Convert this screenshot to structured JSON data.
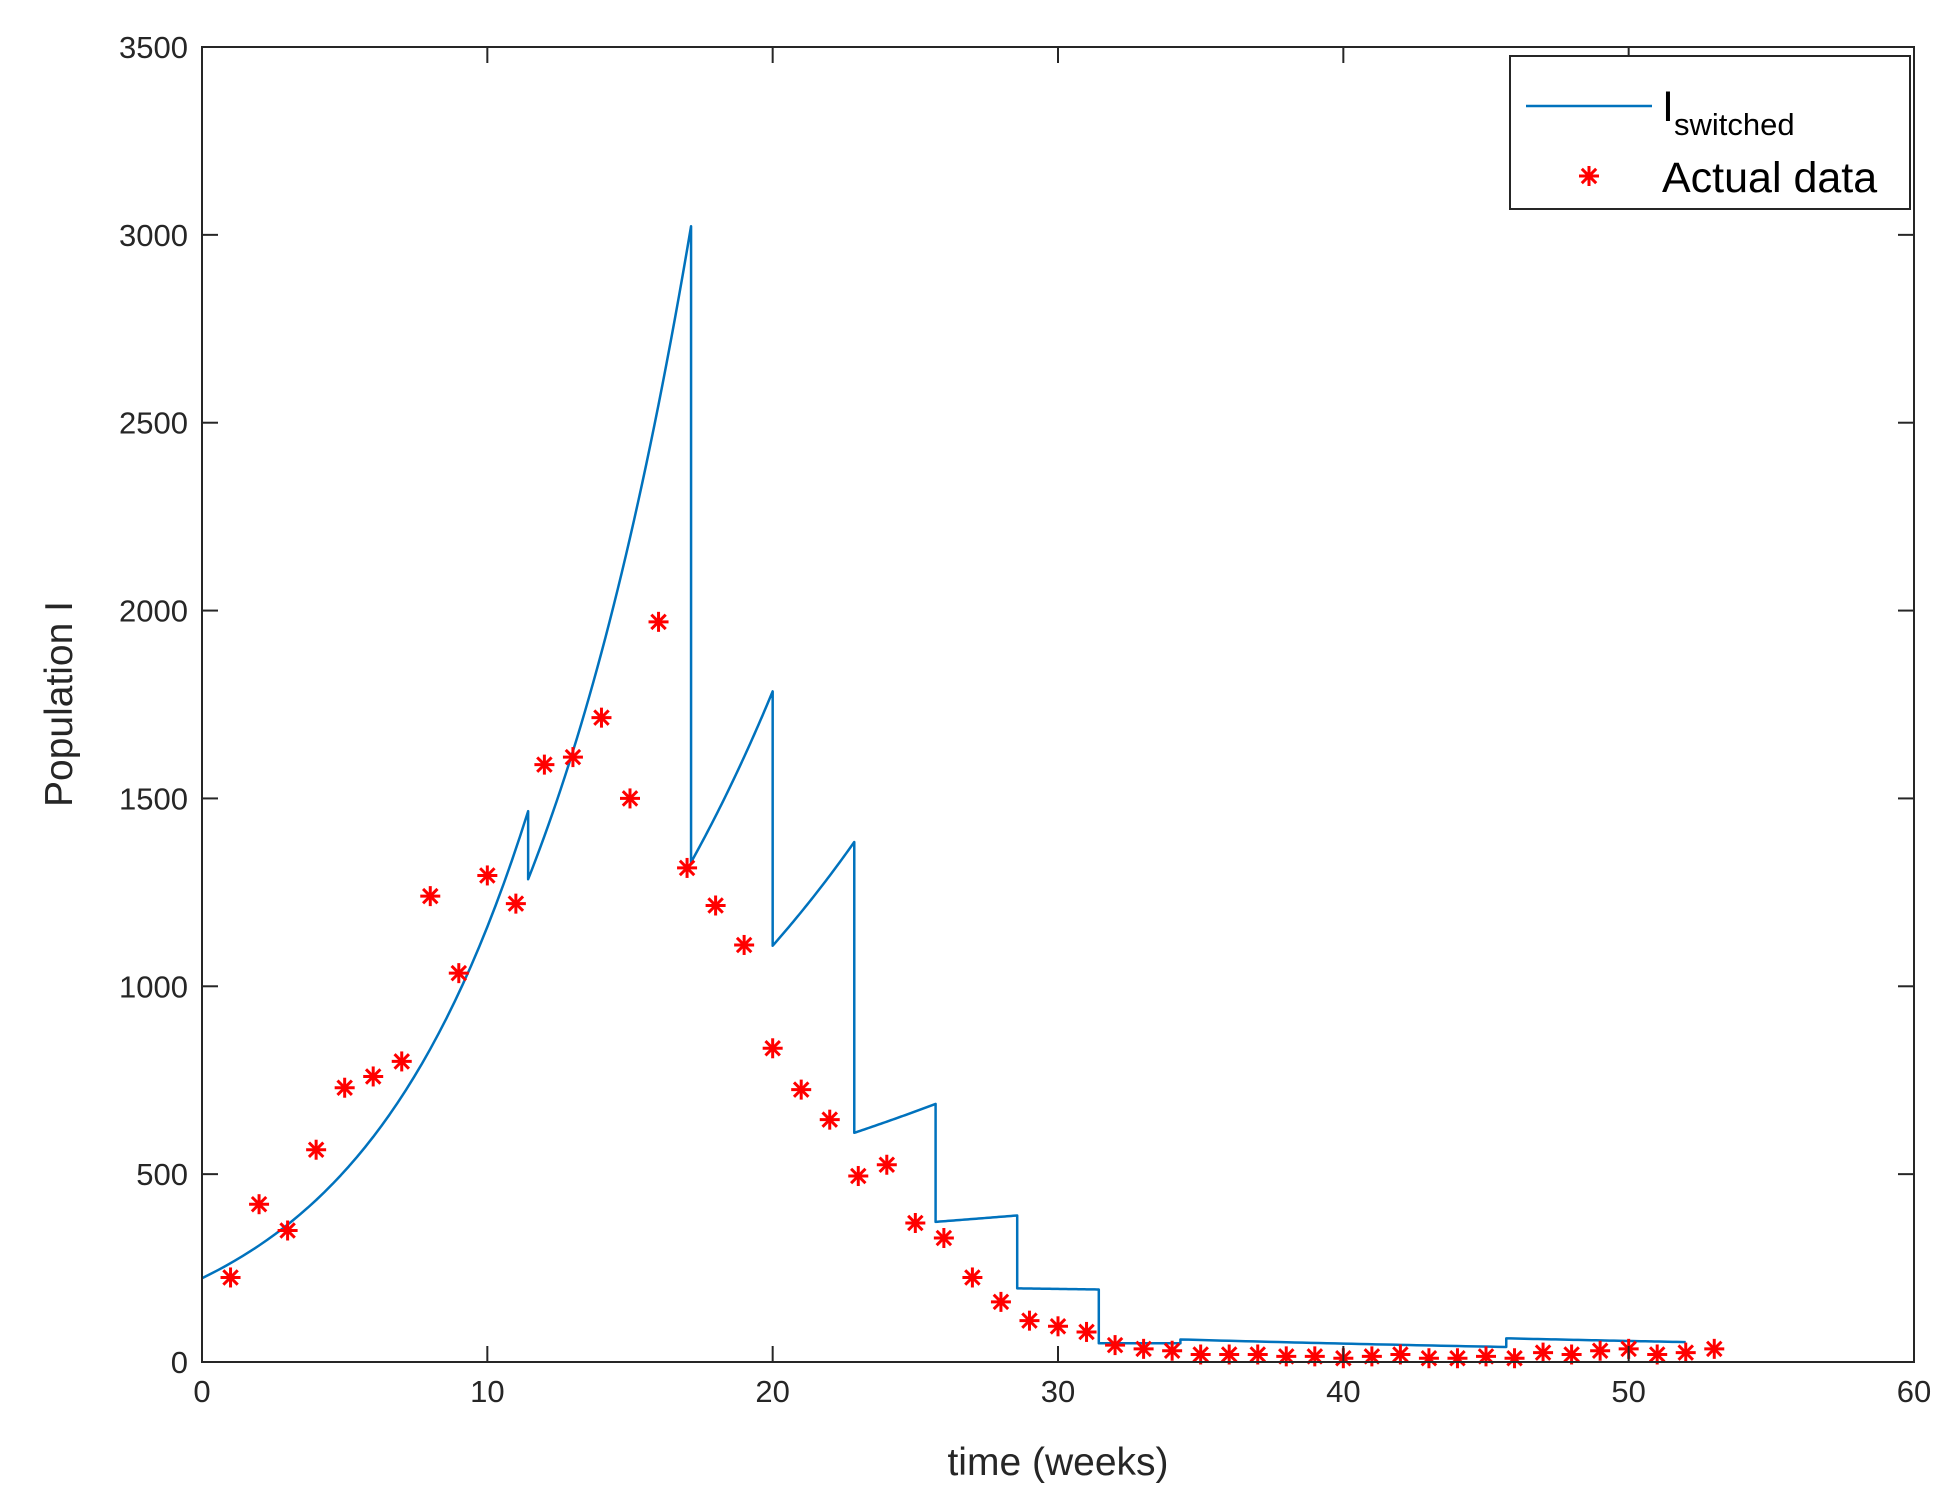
{
  "chart_data": {
    "type": "line",
    "xlabel": "time (weeks)",
    "ylabel": "Population I",
    "xlim": [
      0,
      60
    ],
    "ylim": [
      0,
      3500
    ],
    "xticks": [
      0,
      10,
      20,
      30,
      40,
      50,
      60
    ],
    "yticks": [
      0,
      500,
      1000,
      1500,
      2000,
      2500,
      3000,
      3500
    ],
    "grid": false,
    "legend_position": "top-right",
    "colors": {
      "line": "#0072BD",
      "marker": "#FF0000",
      "axis": "#262626"
    },
    "series": [
      {
        "name_main": "I",
        "name_sub": "switched",
        "kind": "line",
        "segments": [
          {
            "x0": 0,
            "x1": 11.43,
            "y0": 223,
            "y1": 1466
          },
          {
            "x0": 11.43,
            "x1": 17.14,
            "y0": 1285,
            "y1": 3023
          },
          {
            "x0": 17.14,
            "x1": 20,
            "y0": 1330,
            "y1": 1785
          },
          {
            "x0": 20,
            "x1": 22.86,
            "y0": 1108,
            "y1": 1384
          },
          {
            "x0": 22.86,
            "x1": 25.71,
            "y0": 610,
            "y1": 687
          },
          {
            "x0": 25.71,
            "x1": 28.57,
            "y0": 373,
            "y1": 390
          },
          {
            "x0": 28.57,
            "x1": 31.43,
            "y0": 196,
            "y1": 193
          },
          {
            "x0": 31.43,
            "x1": 34.29,
            "y0": 50,
            "y1": 50
          },
          {
            "x0": 34.29,
            "x1": 45.71,
            "y0": 60,
            "y1": 40
          },
          {
            "x0": 45.71,
            "x1": 52,
            "y0": 63,
            "y1": 53
          }
        ]
      },
      {
        "name": "Actual data",
        "kind": "scatter",
        "x": [
          1,
          2,
          3,
          4,
          5,
          6,
          7,
          8,
          9,
          10,
          11,
          12,
          13,
          14,
          15,
          16,
          17,
          18,
          19,
          20,
          21,
          22,
          23,
          24,
          25,
          26,
          27,
          28,
          29,
          30,
          31,
          32,
          33,
          34,
          35,
          36,
          37,
          38,
          39,
          40,
          41,
          42,
          43,
          44,
          45,
          46,
          47,
          48,
          49,
          50,
          51,
          52,
          53
        ],
        "y": [
          225,
          420,
          350,
          565,
          730,
          760,
          800,
          1240,
          1035,
          1295,
          1220,
          1590,
          1610,
          1715,
          1500,
          1970,
          1315,
          1215,
          1110,
          835,
          725,
          645,
          495,
          525,
          370,
          330,
          225,
          160,
          110,
          95,
          80,
          45,
          35,
          30,
          20,
          20,
          20,
          15,
          15,
          10,
          15,
          20,
          10,
          10,
          15,
          10,
          25,
          20,
          30,
          35,
          20,
          25,
          35
        ]
      }
    ]
  }
}
